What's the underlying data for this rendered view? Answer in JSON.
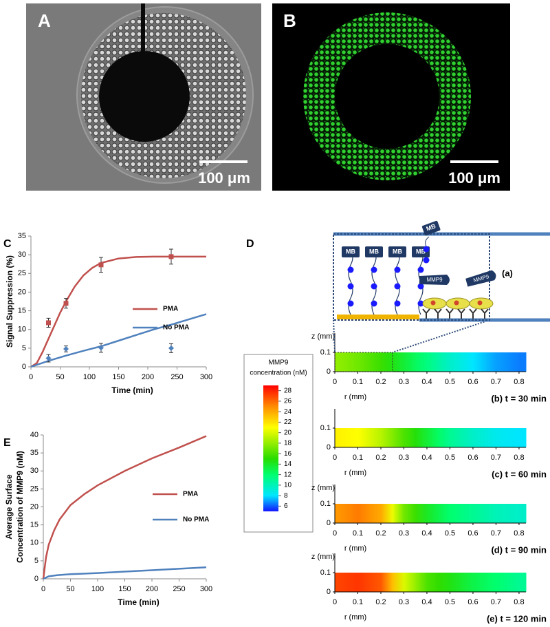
{
  "micrographs": {
    "A": {
      "label": "A",
      "scale_bar": "100 μm"
    },
    "B": {
      "label": "B",
      "scale_bar": "100 μm"
    }
  },
  "schematic": {
    "panel": "D",
    "label": "(a)",
    "probes": [
      "MB",
      "MB",
      "MB",
      "MB",
      "MB"
    ],
    "enzymes": [
      "MMP9",
      "MMP9"
    ]
  },
  "chart_data": [
    {
      "type": "line",
      "label": "C",
      "xlabel": "Time (min)",
      "ylabel": [
        "Signal Suppression (%)"
      ],
      "xlim": [
        0,
        300
      ],
      "ylim": [
        0,
        35
      ],
      "xticks": [
        0,
        50,
        100,
        150,
        200,
        250,
        300
      ],
      "yticks": [
        0,
        5,
        10,
        15,
        20,
        25,
        30,
        35
      ],
      "series": [
        {
          "name": "PMA",
          "color": "#c0504d",
          "x": [
            0,
            10,
            20,
            30,
            40,
            50,
            60,
            75,
            90,
            105,
            120,
            150,
            180,
            210,
            240,
            300
          ],
          "values": [
            0,
            1,
            4,
            7.5,
            11,
            14.5,
            17.5,
            21.5,
            24.5,
            26.5,
            27.8,
            29,
            29.4,
            29.5,
            29.5,
            29.5
          ]
        },
        {
          "name": "No PMA",
          "color": "#4f81bd",
          "x": [
            0,
            30,
            60,
            90,
            120,
            150,
            180,
            210,
            240,
            270,
            300
          ],
          "values": [
            0,
            1.6,
            3,
            4.3,
            5.5,
            7,
            8.5,
            10,
            11.3,
            12.7,
            14.1
          ]
        }
      ],
      "measurements": [
        {
          "color": "#c0504d",
          "marker": "square",
          "x": [
            30,
            60,
            120,
            240
          ],
          "values": [
            11.8,
            17,
            27.3,
            29.5
          ],
          "errors": [
            1.2,
            1.3,
            2,
            2
          ]
        },
        {
          "color": "#4f81bd",
          "marker": "diamond",
          "x": [
            30,
            60,
            120,
            240
          ],
          "values": [
            2.3,
            4.8,
            5.1,
            5
          ],
          "errors": [
            1,
            0.8,
            1.2,
            1.2
          ]
        }
      ]
    },
    {
      "type": "line",
      "label": "E",
      "xlabel": "Time (min)",
      "ylabel": [
        "Average Surface",
        "Concentration of MMP9 (nM)"
      ],
      "xlim": [
        0,
        300
      ],
      "ylim": [
        0,
        40
      ],
      "xticks": [
        0,
        50,
        100,
        150,
        200,
        250,
        300
      ],
      "yticks": [
        0,
        5,
        10,
        15,
        20,
        25,
        30,
        35,
        40
      ],
      "series": [
        {
          "name": "PMA",
          "color": "#c0504d",
          "x": [
            0,
            5,
            10,
            20,
            30,
            50,
            75,
            100,
            150,
            200,
            250,
            300
          ],
          "values": [
            0,
            6,
            9.5,
            13.5,
            16.5,
            20.5,
            23.5,
            26,
            30,
            33.5,
            36.5,
            39.7
          ]
        },
        {
          "name": "No PMA",
          "color": "#4f81bd",
          "x": [
            0,
            10,
            25,
            50,
            100,
            150,
            200,
            250,
            300
          ],
          "values": [
            0,
            0.7,
            1,
            1.3,
            1.6,
            2,
            2.4,
            2.8,
            3.2
          ]
        }
      ]
    },
    {
      "type": "colorbar",
      "title": [
        "MMP9",
        "concentration (nM)"
      ],
      "clim": [
        5,
        29
      ],
      "ticks": [
        6,
        8,
        10,
        12,
        14,
        16,
        18,
        20,
        22,
        24,
        26,
        28
      ],
      "colormap": "jet"
    },
    {
      "type": "heatmap",
      "title": "(b) t = 30 min",
      "xlabel": "r (mm)",
      "ylabel": "z (mm)",
      "xlim": [
        0,
        0.83
      ],
      "ylim": [
        0,
        0.2
      ],
      "xticks": [
        0,
        0.1,
        0.2,
        0.3,
        0.4,
        0.5,
        0.6,
        0.7,
        0.8
      ],
      "yticks": [
        0,
        0.1
      ],
      "y": [
        0,
        0.1
      ],
      "x": [
        0,
        0.1,
        0.2,
        0.3,
        0.4,
        0.5,
        0.6,
        0.7,
        0.8
      ],
      "values": [
        18,
        17,
        15.5,
        13.5,
        11.5,
        9.5,
        8,
        7,
        6.5
      ]
    },
    {
      "type": "heatmap",
      "title": "(c) t = 60 min",
      "xlabel": "r (mm)",
      "xlim": [
        0,
        0.83
      ],
      "ylim": [
        0,
        0.2
      ],
      "xticks": [
        0,
        0.1,
        0.2,
        0.3,
        0.4,
        0.5,
        0.6,
        0.7,
        0.8
      ],
      "yticks": [
        0,
        0.1
      ],
      "y": [
        0,
        0.1
      ],
      "x": [
        0,
        0.1,
        0.2,
        0.3,
        0.4,
        0.5,
        0.6,
        0.7,
        0.8
      ],
      "values": [
        21.5,
        21,
        19,
        16,
        13.5,
        11,
        9.5,
        8.5,
        8
      ]
    },
    {
      "type": "heatmap",
      "title": "(d) t = 90 min",
      "xlabel": "r (mm)",
      "ylabel": "z (mm)",
      "xlim": [
        0,
        0.83
      ],
      "ylim": [
        0,
        0.2
      ],
      "xticks": [
        0,
        0.1,
        0.2,
        0.3,
        0.4,
        0.5,
        0.6,
        0.7,
        0.8
      ],
      "yticks": [
        0,
        0.1
      ],
      "y": [
        0,
        0.1
      ],
      "x": [
        0,
        0.1,
        0.2,
        0.3,
        0.4,
        0.5,
        0.6,
        0.7,
        0.8
      ],
      "values": [
        24.5,
        25.5,
        24,
        17,
        14,
        12,
        11,
        10,
        9.5
      ]
    },
    {
      "type": "heatmap",
      "title": "(e) t = 120 min",
      "xlabel": "r (mm)",
      "ylabel": "z (mm)",
      "xlim": [
        0,
        0.83
      ],
      "ylim": [
        0,
        0.2
      ],
      "xticks": [
        0,
        0.1,
        0.2,
        0.3,
        0.4,
        0.5,
        0.6,
        0.7,
        0.8
      ],
      "yticks": [
        0,
        0.1
      ],
      "y": [
        0,
        0.1
      ],
      "x": [
        0,
        0.1,
        0.2,
        0.3,
        0.4,
        0.5,
        0.6,
        0.7,
        0.8
      ],
      "values": [
        27,
        27.5,
        26.5,
        20,
        16,
        14.5,
        13,
        12,
        11
      ]
    }
  ]
}
